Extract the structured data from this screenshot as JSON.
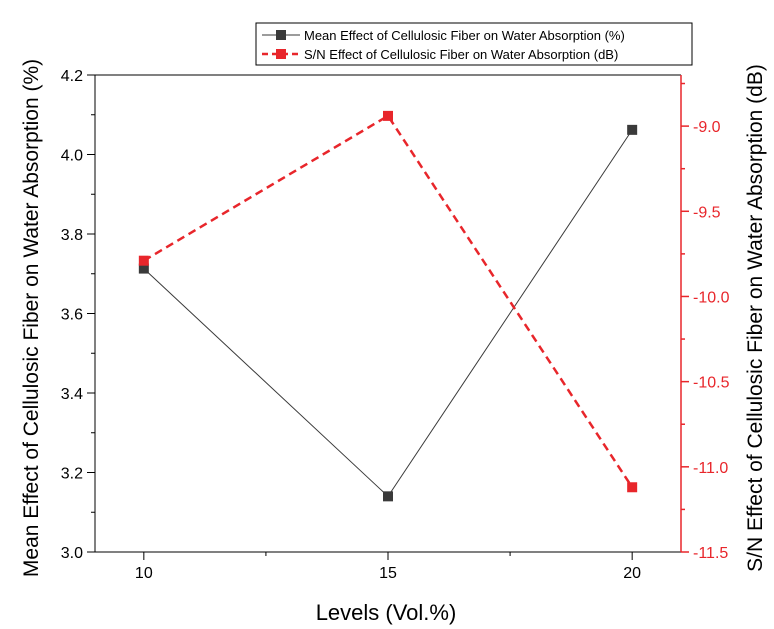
{
  "chart_data": {
    "type": "line",
    "xlabel": "Levels (Vol.%)",
    "ylabel_left": "Mean Effect of Cellulosic Fiber on Water Absorption (%)",
    "ylabel_right": "S/N Effect of Cellulosic Fiber on Water Absorption (dB)",
    "x": [
      10,
      15,
      20
    ],
    "xticks": [
      "10",
      "15",
      "20"
    ],
    "xlim": [
      9,
      21
    ],
    "ylim_left": [
      3.0,
      4.2
    ],
    "ylim_right": [
      -11.5,
      -8.7
    ],
    "yticks_left": [
      "3.0",
      "3.2",
      "3.4",
      "3.6",
      "3.8",
      "4.0",
      "4.2"
    ],
    "yticks_right": [
      "-11.5",
      "-11.0",
      "-10.5",
      "-10.0",
      "-9.5",
      "-9.0"
    ],
    "series": [
      {
        "name": "Mean Effect of Cellulosic Fiber on Water Absorption (%)",
        "axis": "left",
        "values": [
          3.713,
          3.14,
          4.062
        ],
        "color": "#3a3a3a",
        "line_style": "solid",
        "marker": "square"
      },
      {
        "name": "S/N Effect of Cellulosic Fiber on Water Absorption (dB)",
        "axis": "right",
        "values": [
          -9.79,
          -8.94,
          -11.12
        ],
        "color": "#e8262b",
        "line_style": "dashed",
        "marker": "square"
      }
    ],
    "legend_position": "top"
  }
}
